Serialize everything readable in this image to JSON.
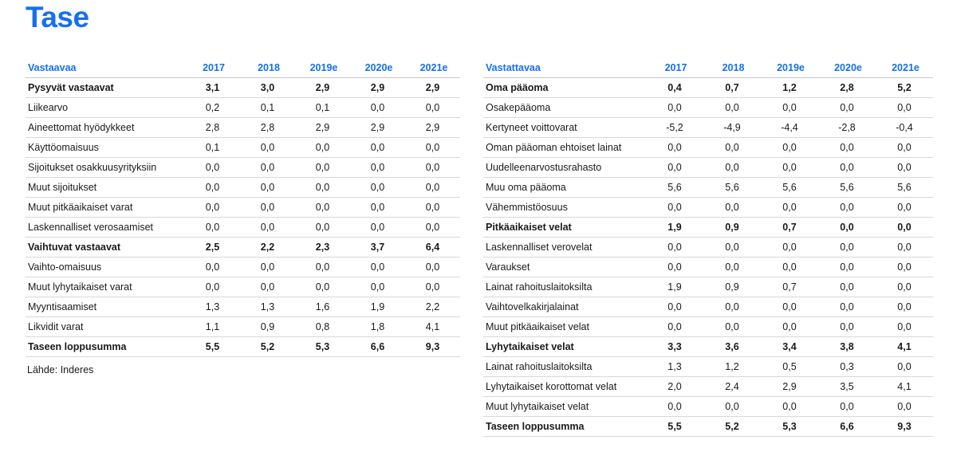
{
  "title": "Tase",
  "source": "Lähde: Inderes",
  "left": {
    "header": [
      "Vastaavaa",
      "2017",
      "2018",
      "2019e",
      "2020e",
      "2021e"
    ],
    "rows": [
      {
        "bold": true,
        "cells": [
          "Pysyvät vastaavat",
          "3,1",
          "3,0",
          "2,9",
          "2,9",
          "2,9"
        ]
      },
      {
        "bold": false,
        "cells": [
          "Liikearvo",
          "0,2",
          "0,1",
          "0,1",
          "0,0",
          "0,0"
        ]
      },
      {
        "bold": false,
        "cells": [
          "Aineettomat hyödykkeet",
          "2,8",
          "2,8",
          "2,9",
          "2,9",
          "2,9"
        ]
      },
      {
        "bold": false,
        "cells": [
          "Käyttöomaisuus",
          "0,1",
          "0,0",
          "0,0",
          "0,0",
          "0,0"
        ]
      },
      {
        "bold": false,
        "cells": [
          "Sijoitukset osakkuusyrityksiin",
          "0,0",
          "0,0",
          "0,0",
          "0,0",
          "0,0"
        ]
      },
      {
        "bold": false,
        "cells": [
          "Muut sijoitukset",
          "0,0",
          "0,0",
          "0,0",
          "0,0",
          "0,0"
        ]
      },
      {
        "bold": false,
        "cells": [
          "Muut pitkäaikaiset varat",
          "0,0",
          "0,0",
          "0,0",
          "0,0",
          "0,0"
        ]
      },
      {
        "bold": false,
        "cells": [
          "Laskennalliset verosaamiset",
          "0,0",
          "0,0",
          "0,0",
          "0,0",
          "0,0"
        ]
      },
      {
        "bold": true,
        "cells": [
          "Vaihtuvat vastaavat",
          "2,5",
          "2,2",
          "2,3",
          "3,7",
          "6,4"
        ]
      },
      {
        "bold": false,
        "cells": [
          "Vaihto-omaisuus",
          "0,0",
          "0,0",
          "0,0",
          "0,0",
          "0,0"
        ]
      },
      {
        "bold": false,
        "cells": [
          "Muut lyhytaikaiset varat",
          "0,0",
          "0,0",
          "0,0",
          "0,0",
          "0,0"
        ]
      },
      {
        "bold": false,
        "cells": [
          "Myyntisaamiset",
          "1,3",
          "1,3",
          "1,6",
          "1,9",
          "2,2"
        ]
      },
      {
        "bold": false,
        "cells": [
          "Likvidit varat",
          "1,1",
          "0,9",
          "0,8",
          "1,8",
          "4,1"
        ]
      },
      {
        "bold": true,
        "cells": [
          "Taseen loppusumma",
          "5,5",
          "5,2",
          "5,3",
          "6,6",
          "9,3"
        ]
      }
    ]
  },
  "right": {
    "header": [
      "Vastattavaa",
      "2017",
      "2018",
      "2019e",
      "2020e",
      "2021e"
    ],
    "rows": [
      {
        "bold": true,
        "cells": [
          "Oma pääoma",
          "0,4",
          "0,7",
          "1,2",
          "2,8",
          "5,2"
        ]
      },
      {
        "bold": false,
        "cells": [
          "Osakepääoma",
          "0,0",
          "0,0",
          "0,0",
          "0,0",
          "0,0"
        ]
      },
      {
        "bold": false,
        "cells": [
          "Kertyneet voittovarat",
          "-5,2",
          "-4,9",
          "-4,4",
          "-2,8",
          "-0,4"
        ]
      },
      {
        "bold": false,
        "cells": [
          "Oman pääoman ehtoiset lainat",
          "0,0",
          "0,0",
          "0,0",
          "0,0",
          "0,0"
        ]
      },
      {
        "bold": false,
        "cells": [
          "Uudelleenarvostusrahasto",
          "0,0",
          "0,0",
          "0,0",
          "0,0",
          "0,0"
        ]
      },
      {
        "bold": false,
        "cells": [
          "Muu oma pääoma",
          "5,6",
          "5,6",
          "5,6",
          "5,6",
          "5,6"
        ]
      },
      {
        "bold": false,
        "cells": [
          "Vähemmistöosuus",
          "0,0",
          "0,0",
          "0,0",
          "0,0",
          "0,0"
        ]
      },
      {
        "bold": true,
        "cells": [
          "Pitkäaikaiset velat",
          "1,9",
          "0,9",
          "0,7",
          "0,0",
          "0,0"
        ]
      },
      {
        "bold": false,
        "cells": [
          "Laskennalliset verovelat",
          "0,0",
          "0,0",
          "0,0",
          "0,0",
          "0,0"
        ]
      },
      {
        "bold": false,
        "cells": [
          "Varaukset",
          "0,0",
          "0,0",
          "0,0",
          "0,0",
          "0,0"
        ]
      },
      {
        "bold": false,
        "cells": [
          "Lainat rahoituslaitoksilta",
          "1,9",
          "0,9",
          "0,7",
          "0,0",
          "0,0"
        ]
      },
      {
        "bold": false,
        "cells": [
          "Vaihtovelkakirjalainat",
          "0,0",
          "0,0",
          "0,0",
          "0,0",
          "0,0"
        ]
      },
      {
        "bold": false,
        "cells": [
          "Muut pitkäaikaiset velat",
          "0,0",
          "0,0",
          "0,0",
          "0,0",
          "0,0"
        ]
      },
      {
        "bold": true,
        "cells": [
          "Lyhytaikaiset velat",
          "3,3",
          "3,6",
          "3,4",
          "3,8",
          "4,1"
        ]
      },
      {
        "bold": false,
        "cells": [
          "Lainat rahoituslaitoksilta",
          "1,3",
          "1,2",
          "0,5",
          "0,3",
          "0,0"
        ]
      },
      {
        "bold": false,
        "cells": [
          "Lyhytaikaiset korottomat velat",
          "2,0",
          "2,4",
          "2,9",
          "3,5",
          "4,1"
        ]
      },
      {
        "bold": false,
        "cells": [
          "Muut lyhytaikaiset velat",
          "0,0",
          "0,0",
          "0,0",
          "0,0",
          "0,0"
        ]
      },
      {
        "bold": true,
        "cells": [
          "Taseen loppusumma",
          "5,5",
          "5,2",
          "5,3",
          "6,6",
          "9,3"
        ]
      }
    ]
  }
}
